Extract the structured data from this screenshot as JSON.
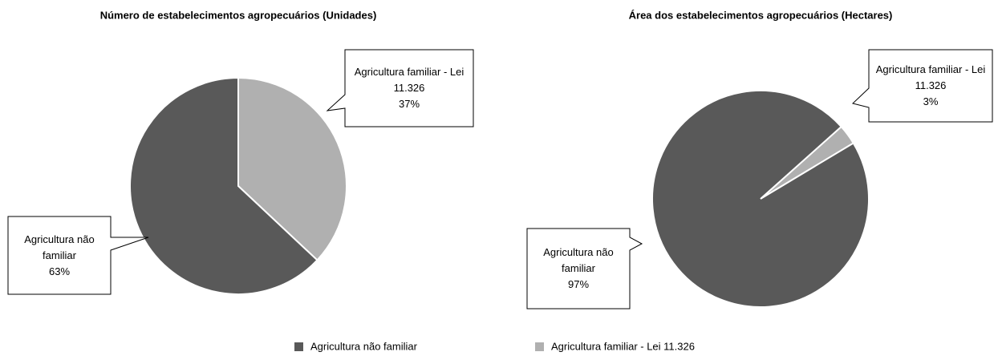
{
  "chart_data": [
    {
      "type": "pie",
      "title": "Número de estabelecimentos agropecuários (Unidades)",
      "categories": [
        "Agricultura não familiar",
        "Agricultura familiar - Lei 11.326"
      ],
      "values": [
        63,
        37
      ],
      "value_labels": [
        "63%",
        "37%"
      ],
      "colors": [
        "#595959",
        "#b0b0b0"
      ]
    },
    {
      "type": "pie",
      "title": "Área dos estabelecimentos agropecuários (Hectares)",
      "categories": [
        "Agricultura não familiar",
        "Agricultura familiar - Lei 11.326"
      ],
      "values": [
        97,
        3
      ],
      "value_labels": [
        "97%",
        "3%"
      ],
      "colors": [
        "#595959",
        "#b0b0b0"
      ]
    }
  ]
}
